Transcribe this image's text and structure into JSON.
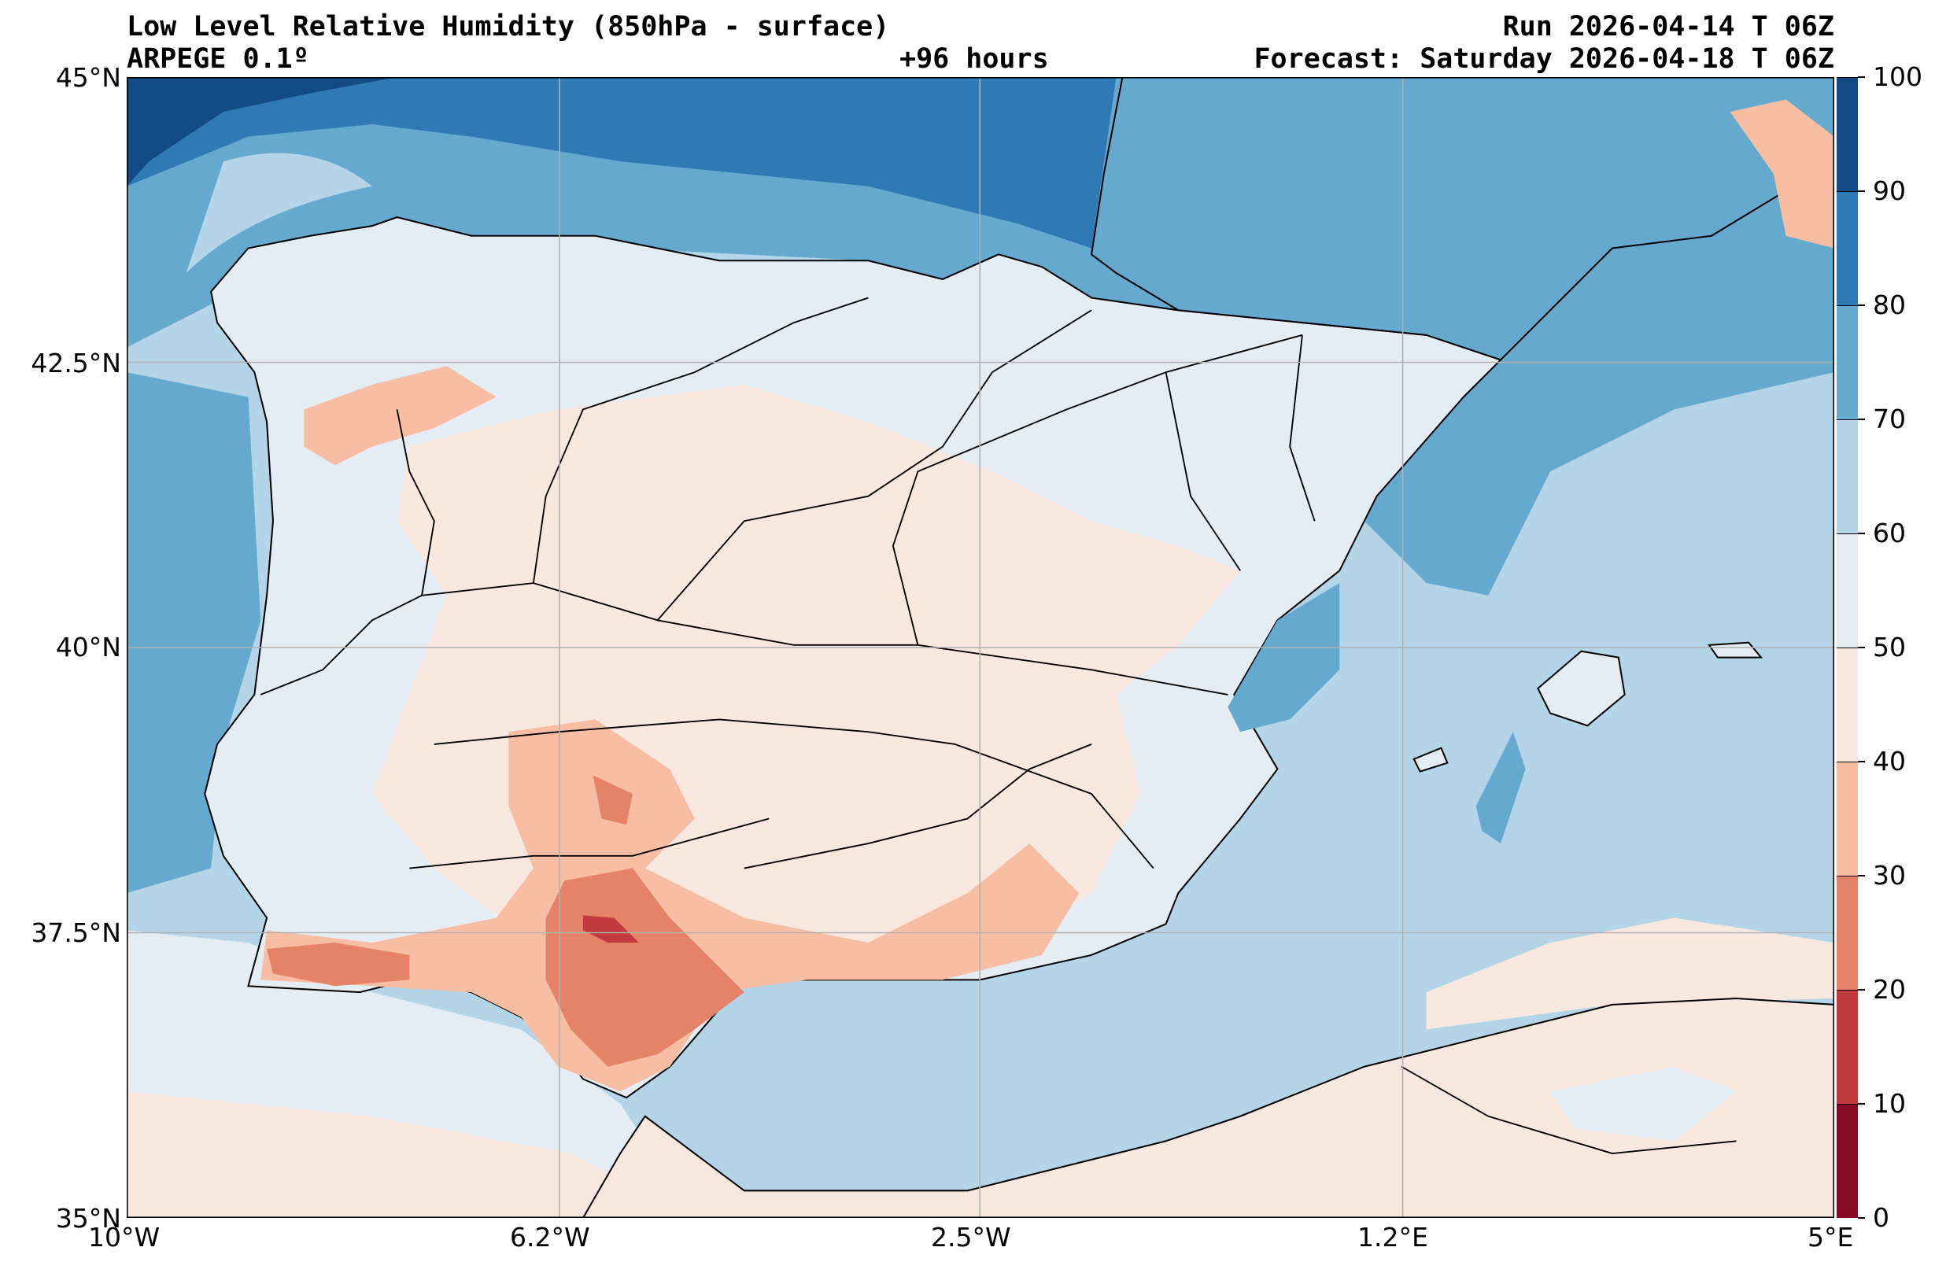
{
  "header": {
    "title": "Low Level Relative Humidity (850hPa - surface)",
    "model": "ARPEGE 0.1º",
    "lead_time": "+96 hours",
    "run": "Run 2026-04-14 T 06Z",
    "forecast": "Forecast: Saturday 2026-04-18 T 06Z"
  },
  "axes": {
    "lat_labels": [
      "45°N",
      "42.5°N",
      "40°N",
      "37.5°N",
      "35°N"
    ],
    "lon_labels": [
      "10°W",
      "6.2°W",
      "2.5°W",
      "1.2°E",
      "5°E"
    ]
  },
  "colorbar": {
    "levels": [
      "0",
      "10",
      "20",
      "30",
      "40",
      "50",
      "60",
      "70",
      "80",
      "90",
      "100"
    ],
    "colors": [
      "#870a24",
      "#c13a3e",
      "#e58368",
      "#f8bea4",
      "#f9e8df",
      "#e5edf4",
      "#b3d5e7",
      "#66a9cf",
      "#2f79b5",
      "#134b86"
    ]
  }
}
